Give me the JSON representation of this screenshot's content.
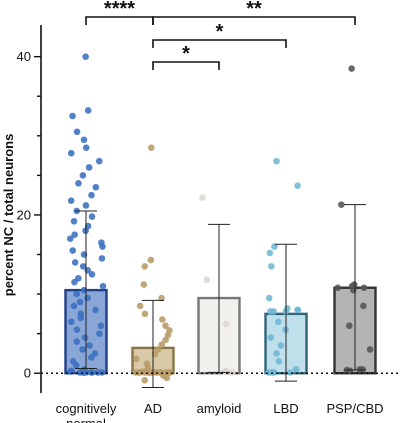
{
  "chart_data": {
    "type": "bar",
    "ylabel": "percent NC / total neurons",
    "ylim": [
      -2.5,
      44
    ],
    "yticks": [
      0,
      20,
      40
    ],
    "baseline_style": "dotted",
    "grid": false,
    "legend": "none",
    "categories": [
      {
        "label": "cognitively\nnormal",
        "lines": [
          "cognitively",
          "normal"
        ],
        "mean": 10.5,
        "sd_low": 0.6,
        "sd_high": 20.5,
        "bar_fill": "#8aa6d6",
        "bar_stroke": "#1f3f86",
        "dot_color": "#3a6fc0",
        "points": [
          40,
          33.2,
          32.5,
          30.5,
          29.5,
          28.5,
          27.8,
          26.8,
          26,
          25,
          24,
          23.5,
          22.5,
          21.8,
          21.2,
          20.5,
          19.8,
          19.2,
          18.6,
          18,
          17.5,
          17,
          16.5,
          16,
          15.5,
          15,
          14.5,
          14,
          13.5,
          13,
          12.5,
          12,
          11.5,
          11,
          10.5,
          10,
          9.5,
          9,
          8.5,
          8,
          7.5,
          7,
          6.5,
          6,
          5.5,
          5,
          4.5,
          4,
          3.5,
          3,
          2.5,
          2,
          1.5,
          1,
          0.5,
          0.3,
          0.2,
          0.1,
          0.1,
          0.1,
          0.1,
          0.1,
          0.1,
          0.1,
          0.1,
          0.1
        ]
      },
      {
        "label": "AD",
        "lines": [
          "AD"
        ],
        "mean": 3.2,
        "sd_low": -1.8,
        "sd_high": 9.2,
        "bar_fill": "#d9c9a8",
        "bar_stroke": "#8a7245",
        "dot_color": "#b79b66",
        "points": [
          28.5,
          14.3,
          13.5,
          11.2,
          9.5,
          8.5,
          7.5,
          6.8,
          6,
          5.4,
          4.8,
          4.2,
          3.6,
          3,
          2.4,
          1.8,
          1.2,
          0.6,
          0.2,
          0.1,
          0.1,
          0.1,
          0.1,
          0.1,
          0.1,
          0.1,
          0.1,
          0.1,
          0.1,
          0.1,
          0.1,
          0.1,
          0.1,
          0.1,
          0.1,
          -0.3,
          -0.6,
          -0.9
        ]
      },
      {
        "label": "amyloid",
        "lines": [
          "amyloid"
        ],
        "mean": 9.5,
        "sd_low": 0.1,
        "sd_high": 18.8,
        "bar_fill": "#f2f0ec",
        "bar_stroke": "#777777",
        "dot_color": "#ddd8cf",
        "points": [
          22.2,
          11.8,
          6.2,
          0.3,
          0.2,
          0.1
        ]
      },
      {
        "label": "LBD",
        "lines": [
          "LBD"
        ],
        "mean": 7.5,
        "sd_low": -1.0,
        "sd_high": 16.3,
        "bar_fill": "#bfdfea",
        "bar_stroke": "#2f6478",
        "dot_color": "#6fb7d4",
        "points": [
          26.8,
          23.7,
          16,
          15.2,
          13.5,
          9.5,
          8.2,
          8,
          8,
          7.8,
          7.8,
          7.8,
          6.5,
          5.5,
          4.5,
          3.5,
          2.5,
          1.5,
          0.5,
          0.1,
          0.1,
          0.1,
          0.1,
          0.1
        ]
      },
      {
        "label": "PSP/CBD",
        "lines": [
          "PSP/CBD"
        ],
        "mean": 10.8,
        "sd_low": 0.4,
        "sd_high": 21.3,
        "bar_fill": "#b4b4b4",
        "bar_stroke": "#333333",
        "dot_color": "#555555",
        "points": [
          38.5,
          21.3,
          11.2,
          11,
          10.8,
          10.8,
          10.5,
          8.5,
          6,
          3,
          0.5,
          0.5,
          0.4,
          0.3
        ]
      }
    ],
    "comparisons": [
      {
        "from": 0,
        "to": 1,
        "label": "****"
      },
      {
        "from": 1,
        "to": 4,
        "label": "**"
      },
      {
        "from": 1,
        "to": 3,
        "label": "*"
      },
      {
        "from": 1,
        "to": 2,
        "label": "*"
      }
    ]
  }
}
